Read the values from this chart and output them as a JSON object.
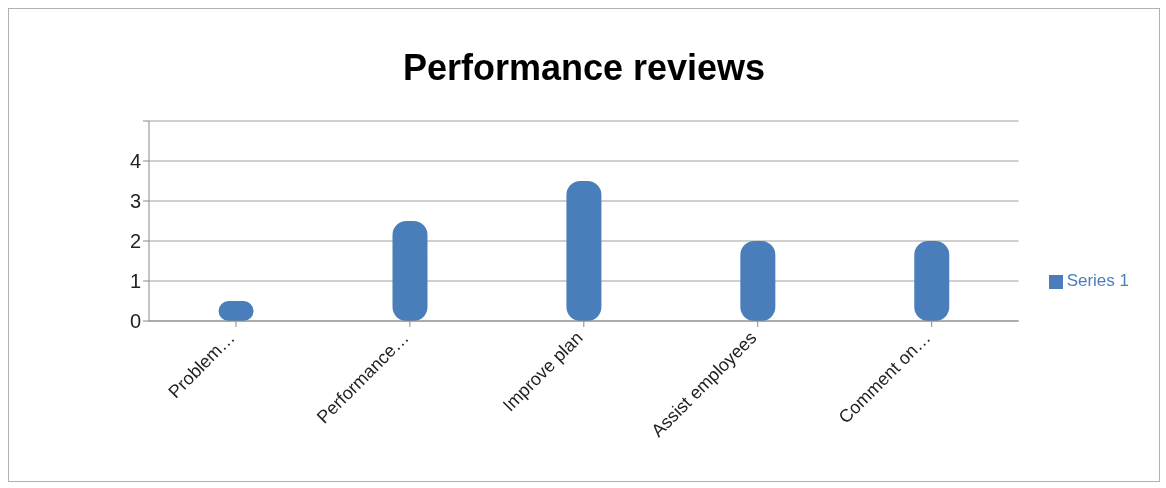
{
  "chart_data": {
    "type": "bar",
    "title": "Performance reviews",
    "categories": [
      "Problem…",
      "Performance…",
      "Improve plan",
      "Assist employees",
      "Comment on…"
    ],
    "series": [
      {
        "name": "Series 1",
        "color": "#4a7ebb",
        "values": [
          0.5,
          2.5,
          3.5,
          2,
          2
        ]
      }
    ],
    "ylim": [
      0,
      5
    ],
    "yticks": [
      0,
      1,
      2,
      3,
      4,
      {
        "value": 5,
        "label": null
      }
    ],
    "grid": "y",
    "legend": "right"
  }
}
